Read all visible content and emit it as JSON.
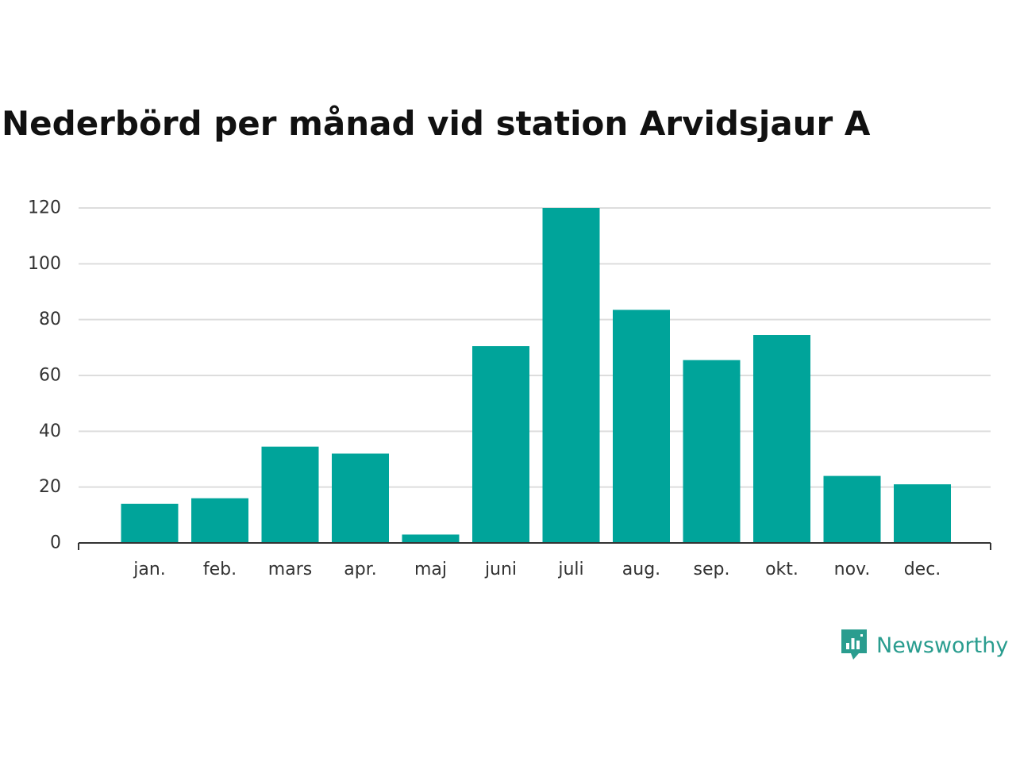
{
  "chart_data": {
    "type": "bar",
    "title": "Nederbörd per månad vid station Arvidsjaur A",
    "xlabel": "",
    "ylabel": "",
    "categories": [
      "jan.",
      "feb.",
      "mars",
      "apr.",
      "maj",
      "juni",
      "juli",
      "aug.",
      "sep.",
      "okt.",
      "nov.",
      "dec."
    ],
    "values": [
      14,
      16,
      34.5,
      32,
      3,
      70.5,
      120,
      83.5,
      65.5,
      74.5,
      24,
      21
    ],
    "ylim": [
      0,
      120
    ],
    "yticks": [
      "0",
      "20",
      "40",
      "60",
      "80",
      "100",
      "120"
    ],
    "grid": true,
    "legend": "none",
    "bar_color": "#00a49a",
    "gridline_color": "#dddddd",
    "axis_color": "#333333"
  },
  "brand": {
    "name": "Newsworthy",
    "icon": "newsworthy-logo-icon",
    "color": "#2a9d8f"
  }
}
